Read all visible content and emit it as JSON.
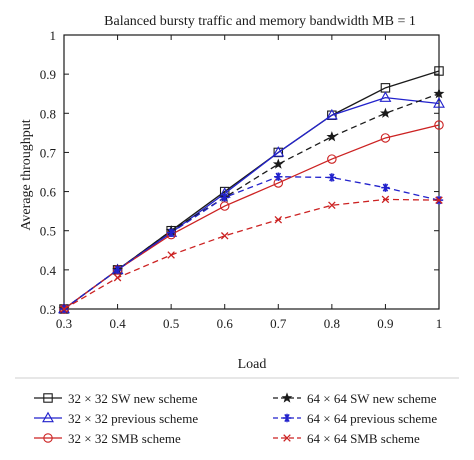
{
  "chart_data": {
    "type": "line",
    "title": "Balanced bursty traffic and memory bandwidth MB = 1",
    "xlabel": "Load",
    "ylabel": "Average throughput",
    "xlim": [
      0.3,
      1
    ],
    "ylim": [
      0.3,
      1
    ],
    "x_ticks": [
      "0.3",
      "0.4",
      "0.5",
      "0.6",
      "0.7",
      "0.8",
      "0.9",
      "1"
    ],
    "y_ticks": [
      "0.3",
      "0.4",
      "0.5",
      "0.6",
      "0.7",
      "0.8",
      "0.9",
      "1"
    ],
    "x": [
      0.3,
      0.4,
      0.5,
      0.6,
      0.7,
      0.8,
      0.9,
      1.0
    ],
    "grid": false,
    "legend_placement": "bottom",
    "series": [
      {
        "name": "32 × 32 SW new scheme",
        "values": [
          0.3,
          0.4,
          0.5,
          0.6,
          0.7,
          0.795,
          0.865,
          0.908
        ],
        "color": "#1a1a1a",
        "dash": "solid",
        "marker": "square"
      },
      {
        "name": "32 × 32 previous scheme",
        "values": [
          0.3,
          0.4,
          0.495,
          0.595,
          0.7,
          0.795,
          0.84,
          0.825
        ],
        "color": "#2222cc",
        "dash": "solid",
        "marker": "triangle"
      },
      {
        "name": "32 × 32 SMB scheme",
        "values": [
          0.3,
          0.4,
          0.49,
          0.563,
          0.622,
          0.683,
          0.737,
          0.77
        ],
        "color": "#cc2222",
        "dash": "solid",
        "marker": "circle"
      },
      {
        "name": "64 × 64 SW new scheme",
        "values": [
          0.3,
          0.4,
          0.5,
          0.585,
          0.67,
          0.74,
          0.8,
          0.85
        ],
        "color": "#1a1a1a",
        "dash": "dashed",
        "marker": "star"
      },
      {
        "name": "64 × 64 previous scheme",
        "values": [
          0.3,
          0.4,
          0.495,
          0.585,
          0.638,
          0.636,
          0.61,
          0.578
        ],
        "color": "#2222cc",
        "dash": "dashed",
        "marker": "asterisk"
      },
      {
        "name": "64 × 64 SMB scheme",
        "values": [
          0.3,
          0.38,
          0.438,
          0.487,
          0.528,
          0.565,
          0.58,
          0.578
        ],
        "color": "#cc2222",
        "dash": "dashed",
        "marker": "cross"
      }
    ]
  }
}
